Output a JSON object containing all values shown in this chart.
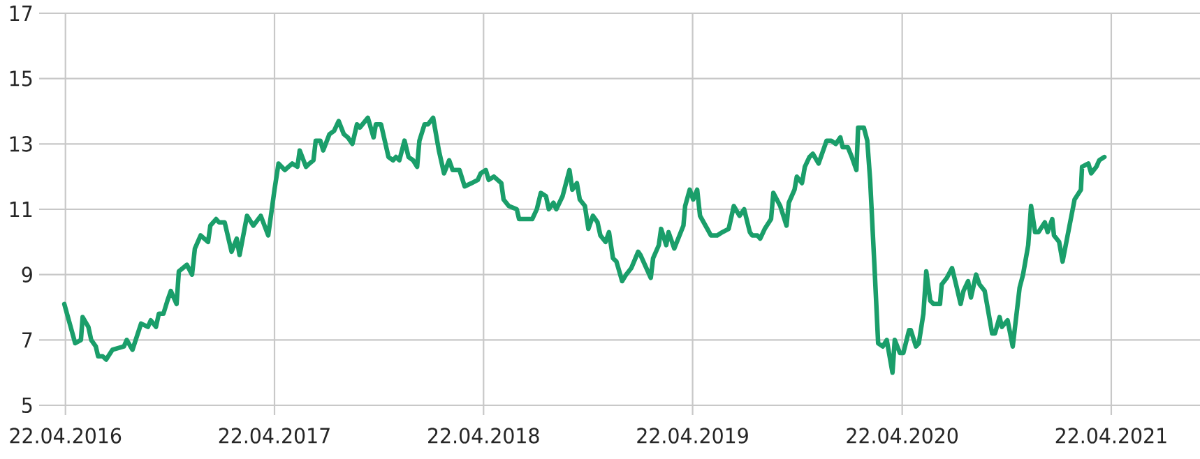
{
  "chart_data": {
    "type": "line",
    "color": "#1a9e6a",
    "grid": true,
    "marker": "none",
    "line_style": "solid",
    "xlim": [
      "2016-03-07",
      "2021-09-24"
    ],
    "ylim": [
      5,
      17
    ],
    "xticks": [
      {
        "value": "2016-04-22",
        "label": "22.04.2016"
      },
      {
        "value": "2017-04-22",
        "label": "22.04.2017"
      },
      {
        "value": "2018-04-22",
        "label": "22.04.2018"
      },
      {
        "value": "2019-04-22",
        "label": "22.04.2019"
      },
      {
        "value": "2020-04-22",
        "label": "22.04.2020"
      },
      {
        "value": "2021-04-22",
        "label": "22.04.2021"
      }
    ],
    "yticks": [
      5,
      7,
      9,
      11,
      13,
      15,
      17
    ],
    "x": [
      "2016-04-20",
      "2016-05-09",
      "2016-05-19",
      "2016-05-22",
      "2016-06-01",
      "2016-06-06",
      "2016-06-14",
      "2016-06-18",
      "2016-06-26",
      "2016-07-02",
      "2016-07-13",
      "2016-08-02",
      "2016-08-07",
      "2016-08-17",
      "2016-09-01",
      "2016-09-13",
      "2016-09-18",
      "2016-09-27",
      "2016-10-02",
      "2016-10-10",
      "2016-10-17",
      "2016-10-23",
      "2016-11-02",
      "2016-11-06",
      "2016-11-20",
      "2016-11-29",
      "2016-12-04",
      "2016-12-14",
      "2016-12-27",
      "2016-12-31",
      "2017-01-10",
      "2017-01-15",
      "2017-01-25",
      "2017-02-06",
      "2017-02-15",
      "2017-02-20",
      "2017-03-05",
      "2017-03-16",
      "2017-03-29",
      "2017-04-11",
      "2017-04-22",
      "2017-04-29",
      "2017-05-10",
      "2017-05-23",
      "2017-06-01",
      "2017-06-05",
      "2017-06-16",
      "2017-06-22",
      "2017-06-29",
      "2017-07-03",
      "2017-07-11",
      "2017-07-16",
      "2017-07-27",
      "2017-08-04",
      "2017-08-12",
      "2017-08-21",
      "2017-08-28",
      "2017-09-05",
      "2017-09-13",
      "2017-09-18",
      "2017-10-02",
      "2017-10-12",
      "2017-10-16",
      "2017-10-25",
      "2017-11-07",
      "2017-11-15",
      "2017-11-20",
      "2017-11-26",
      "2017-12-05",
      "2017-12-12",
      "2017-12-20",
      "2017-12-27",
      "2017-12-31",
      "2018-01-09",
      "2018-01-15",
      "2018-01-24",
      "2018-02-03",
      "2018-02-12",
      "2018-02-21",
      "2018-02-27",
      "2018-03-11",
      "2018-03-20",
      "2018-04-01",
      "2018-04-12",
      "2018-04-17",
      "2018-04-26",
      "2018-05-01",
      "2018-05-10",
      "2018-05-23",
      "2018-05-27",
      "2018-06-05",
      "2018-06-19",
      "2018-06-23",
      "2018-07-03",
      "2018-07-16",
      "2018-07-24",
      "2018-07-31",
      "2018-08-09",
      "2018-08-14",
      "2018-08-22",
      "2018-08-27",
      "2018-09-07",
      "2018-09-19",
      "2018-09-24",
      "2018-10-02",
      "2018-10-07",
      "2018-10-16",
      "2018-10-22",
      "2018-10-30",
      "2018-11-07",
      "2018-11-12",
      "2018-11-21",
      "2018-11-27",
      "2018-12-04",
      "2018-12-10",
      "2018-12-20",
      "2018-12-27",
      "2019-01-05",
      "2019-01-17",
      "2019-01-21",
      "2019-02-08",
      "2019-02-12",
      "2019-02-22",
      "2019-02-26",
      "2019-03-07",
      "2019-03-11",
      "2019-03-21",
      "2019-04-06",
      "2019-04-09",
      "2019-04-17",
      "2019-04-23",
      "2019-04-30",
      "2019-05-05",
      "2019-05-24",
      "2019-06-04",
      "2019-06-13",
      "2019-06-24",
      "2019-07-03",
      "2019-07-13",
      "2019-07-21",
      "2019-07-31",
      "2019-08-04",
      "2019-08-13",
      "2019-08-18",
      "2019-08-26",
      "2019-09-06",
      "2019-09-10",
      "2019-09-22",
      "2019-10-03",
      "2019-10-07",
      "2019-10-17",
      "2019-10-21",
      "2019-10-30",
      "2019-11-04",
      "2019-11-12",
      "2019-11-18",
      "2019-11-28",
      "2019-12-12",
      "2019-12-20",
      "2019-12-28",
      "2020-01-05",
      "2020-01-09",
      "2020-01-18",
      "2020-01-25",
      "2020-02-02",
      "2020-02-05",
      "2020-02-15",
      "2020-02-21",
      "2020-02-26",
      "2020-03-05",
      "2020-03-11",
      "2020-03-19",
      "2020-03-26",
      "2020-04-05",
      "2020-04-09",
      "2020-04-18",
      "2020-04-24",
      "2020-05-04",
      "2020-05-07",
      "2020-05-16",
      "2020-05-21",
      "2020-05-29",
      "2020-06-03",
      "2020-06-10",
      "2020-06-16",
      "2020-06-27",
      "2020-06-30",
      "2020-07-09",
      "2020-07-18",
      "2020-07-25",
      "2020-08-02",
      "2020-08-07",
      "2020-08-15",
      "2020-08-20",
      "2020-08-29",
      "2020-09-04",
      "2020-09-13",
      "2020-09-26",
      "2020-10-01",
      "2020-10-09",
      "2020-10-13",
      "2020-10-23",
      "2020-11-01",
      "2020-11-13",
      "2020-11-19",
      "2020-11-28",
      "2020-12-03",
      "2020-12-10",
      "2020-12-16",
      "2020-12-27",
      "2021-01-01",
      "2021-01-09",
      "2021-01-12",
      "2021-01-21",
      "2021-01-27",
      "2021-02-17",
      "2021-02-28",
      "2021-03-02",
      "2021-03-13",
      "2021-03-18",
      "2021-03-27",
      "2021-04-01",
      "2021-04-10"
    ],
    "values": [
      8.1,
      6.9,
      7.0,
      7.7,
      7.4,
      7.0,
      6.8,
      6.5,
      6.5,
      6.4,
      6.7,
      6.8,
      7.0,
      6.7,
      7.5,
      7.4,
      7.6,
      7.4,
      7.8,
      7.8,
      8.2,
      8.5,
      8.1,
      9.1,
      9.3,
      9.0,
      9.8,
      10.2,
      10.0,
      10.5,
      10.7,
      10.6,
      10.6,
      9.7,
      10.1,
      9.6,
      10.8,
      10.5,
      10.8,
      10.2,
      11.6,
      12.4,
      12.2,
      12.4,
      12.3,
      12.8,
      12.3,
      12.4,
      12.5,
      13.1,
      13.1,
      12.8,
      13.3,
      13.4,
      13.7,
      13.3,
      13.2,
      13.0,
      13.6,
      13.5,
      13.8,
      13.2,
      13.6,
      13.6,
      12.6,
      12.5,
      12.6,
      12.5,
      13.1,
      12.6,
      12.5,
      12.3,
      13.1,
      13.6,
      13.6,
      13.8,
      12.8,
      12.1,
      12.5,
      12.2,
      12.2,
      11.7,
      11.8,
      11.9,
      12.1,
      12.2,
      11.9,
      12.0,
      11.8,
      11.3,
      11.1,
      11.0,
      10.7,
      10.7,
      10.7,
      11.0,
      11.5,
      11.4,
      11.0,
      11.2,
      11.0,
      11.4,
      12.2,
      11.6,
      11.8,
      11.3,
      11.1,
      10.4,
      10.8,
      10.6,
      10.2,
      10.0,
      10.3,
      9.5,
      9.4,
      8.8,
      9.0,
      9.2,
      9.7,
      9.6,
      8.9,
      9.5,
      9.9,
      10.4,
      9.9,
      10.3,
      9.8,
      10.5,
      11.1,
      11.6,
      11.3,
      11.6,
      10.8,
      10.2,
      10.2,
      10.3,
      10.4,
      11.1,
      10.8,
      11.0,
      10.3,
      10.2,
      10.2,
      10.1,
      10.4,
      10.7,
      11.5,
      11.1,
      10.5,
      11.2,
      11.6,
      12.0,
      11.8,
      12.3,
      12.6,
      12.7,
      12.4,
      13.1,
      13.1,
      13.0,
      13.2,
      12.9,
      12.9,
      12.6,
      12.2,
      13.5,
      13.5,
      13.1,
      11.9,
      9.1,
      6.9,
      6.8,
      7.0,
      6.0,
      7.0,
      6.6,
      6.6,
      7.3,
      7.3,
      6.8,
      6.9,
      7.8,
      9.1,
      8.2,
      8.1,
      8.1,
      8.7,
      8.9,
      9.2,
      8.7,
      8.1,
      8.5,
      8.8,
      8.3,
      9.0,
      8.7,
      8.5,
      7.2,
      7.2,
      7.7,
      7.4,
      7.6,
      6.8,
      8.6,
      9.0,
      9.9,
      11.1,
      10.3,
      10.3,
      10.6,
      10.3,
      10.7,
      10.2,
      10.0,
      9.4,
      11.3,
      11.6,
      12.3,
      12.4,
      12.1,
      12.3,
      12.5,
      12.6
    ]
  }
}
